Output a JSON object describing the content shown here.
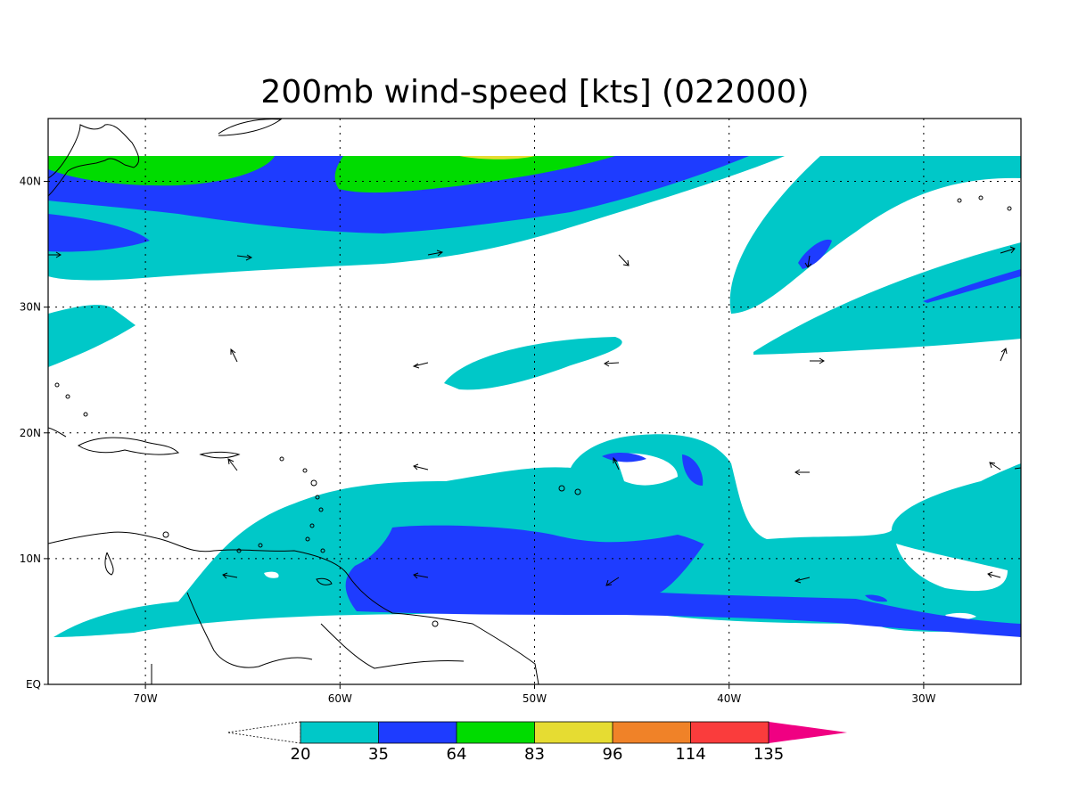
{
  "map": {
    "title": "200mb wind-speed [kts] (022000)",
    "lon_range": [
      -75,
      -25
    ],
    "lat_range": [
      0,
      45
    ],
    "grid": true,
    "lat_ticks": [
      {
        "lat": 40,
        "label": "40N"
      },
      {
        "lat": 30,
        "label": "30N"
      },
      {
        "lat": 20,
        "label": "20N"
      },
      {
        "lat": 10,
        "label": "10N"
      },
      {
        "lat": 0,
        "label": "EQ"
      }
    ],
    "lon_ticks": [
      {
        "lon": -70,
        "label": "70W"
      },
      {
        "lon": -60,
        "label": "60W"
      },
      {
        "lon": -50,
        "label": "50W"
      },
      {
        "lon": -40,
        "label": "40W"
      },
      {
        "lon": -30,
        "label": "30W"
      }
    ]
  },
  "colorbar": {
    "colors": {
      "c20": "#00c8c8",
      "c35": "#1e3cff",
      "c64": "#00dc00",
      "c83": "#e6dc32",
      "c96": "#f08228",
      "c114": "#fa3c3c",
      "c135": "#f00082"
    },
    "labels": [
      "20",
      "35",
      "64",
      "83",
      "96",
      "114",
      "135"
    ]
  }
}
